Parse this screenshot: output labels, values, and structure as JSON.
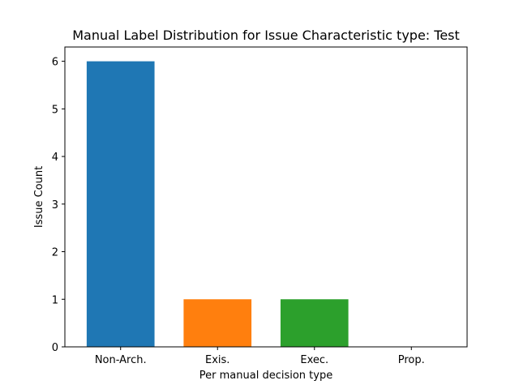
{
  "chart_data": {
    "type": "bar",
    "title": "Manual Label Distribution for Issue Characteristic type: Test",
    "xlabel": "Per manual decision type",
    "ylabel": "Issue Count",
    "categories": [
      "Non-Arch.",
      "Exis.",
      "Exec.",
      "Prop."
    ],
    "values": [
      6,
      1,
      1,
      0
    ],
    "colors": [
      "#1f77b4",
      "#ff7f0e",
      "#2ca02c",
      "#d62728"
    ],
    "ylim": [
      0,
      6.3
    ],
    "yticks": [
      0,
      1,
      2,
      3,
      4,
      5,
      6
    ],
    "grid": false,
    "legend": "none"
  }
}
